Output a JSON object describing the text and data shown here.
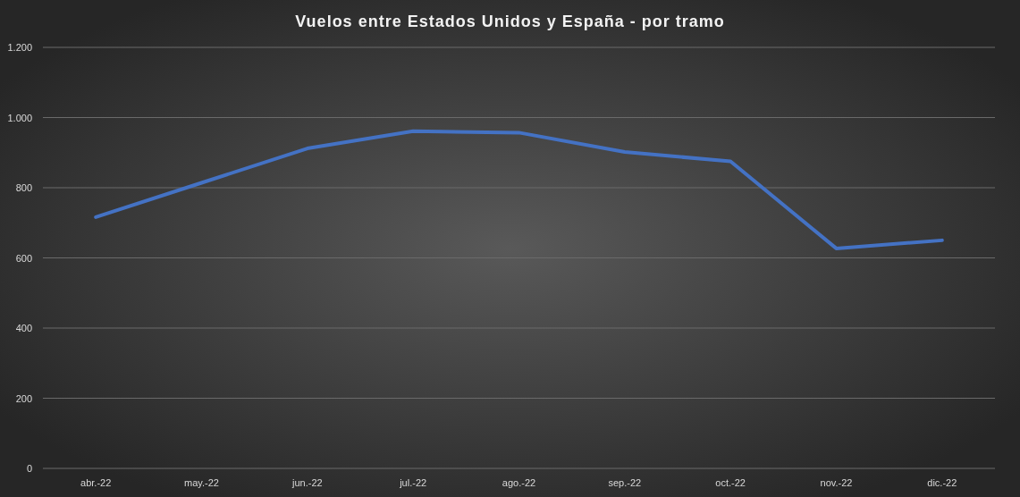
{
  "chart_data": {
    "type": "line",
    "title": "Vuelos entre Estados Unidos y España - por tramo",
    "categories": [
      "abr.-22",
      "may.-22",
      "jun.-22",
      "jul.-22",
      "ago.-22",
      "sep.-22",
      "oct.-22",
      "nov.-22",
      "dic.-22"
    ],
    "series": [
      {
        "color": "#4472c4",
        "values": [
          716,
          814,
          912,
          961,
          957,
          902,
          875,
          627,
          650
        ]
      }
    ],
    "ylim": [
      0,
      1200
    ],
    "yticks": [
      0,
      200,
      400,
      600,
      800,
      {
        "value": 1000,
        "label": "1.000"
      },
      {
        "value": 1200,
        "label": "1.200"
      }
    ],
    "grid": "y",
    "marker": "none",
    "line_style": "solid"
  }
}
